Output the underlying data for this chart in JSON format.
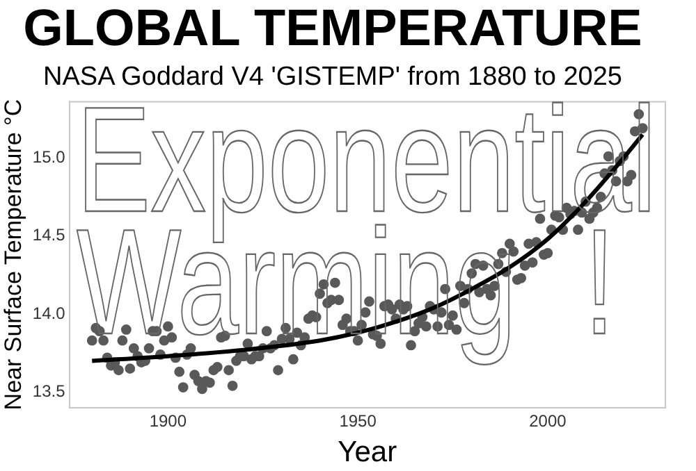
{
  "chart_data": {
    "type": "scatter",
    "title": "GLOBAL TEMPERATURE",
    "subtitle": "NASA Goddard V4 'GISTEMP' from 1880 to 2025",
    "xlabel": "Year",
    "ylabel": "Near Surface Temperature °C",
    "annotations": [
      "Exponential\nWarming !"
    ],
    "xlim": [
      1874,
      2031
    ],
    "xticks": [
      1900,
      1950,
      2000
    ],
    "ylim": [
      13.4,
      15.36
    ],
    "yticks": [
      13.5,
      {
        "value": 14,
        "label": "14.0"
      },
      14.5,
      {
        "value": 15,
        "label": "15.0"
      }
    ],
    "grid": false,
    "legend": false,
    "marker": "circle",
    "series": [
      {
        "color": "#595959",
        "x": [
          1880,
          1881,
          1882,
          1883,
          1884,
          1885,
          1886,
          1887,
          1888,
          1889,
          1890,
          1891,
          1892,
          1893,
          1894,
          1895,
          1896,
          1897,
          1898,
          1899,
          1900,
          1901,
          1902,
          1903,
          1904,
          1905,
          1906,
          1907,
          1908,
          1909,
          1910,
          1911,
          1912,
          1913,
          1914,
          1915,
          1916,
          1917,
          1918,
          1919,
          1920,
          1921,
          1922,
          1923,
          1924,
          1925,
          1926,
          1927,
          1928,
          1929,
          1930,
          1931,
          1932,
          1933,
          1934,
          1935,
          1936,
          1937,
          1938,
          1939,
          1940,
          1941,
          1942,
          1943,
          1944,
          1945,
          1946,
          1947,
          1948,
          1949,
          1950,
          1951,
          1952,
          1953,
          1954,
          1955,
          1956,
          1957,
          1958,
          1959,
          1960,
          1961,
          1962,
          1963,
          1964,
          1965,
          1966,
          1967,
          1968,
          1969,
          1970,
          1971,
          1972,
          1973,
          1974,
          1975,
          1976,
          1977,
          1978,
          1979,
          1980,
          1981,
          1982,
          1983,
          1984,
          1985,
          1986,
          1987,
          1988,
          1989,
          1990,
          1991,
          1992,
          1993,
          1994,
          1995,
          1996,
          1997,
          1998,
          1999,
          2000,
          2001,
          2002,
          2003,
          2004,
          2005,
          2006,
          2007,
          2008,
          2009,
          2010,
          2011,
          2012,
          2013,
          2014,
          2015,
          2016,
          2017,
          2018,
          2019,
          2020,
          2021,
          2022,
          2023,
          2024,
          2025
        ],
        "values": [
          13.83,
          13.91,
          13.89,
          13.83,
          13.72,
          13.67,
          13.69,
          13.64,
          13.83,
          13.9,
          13.65,
          13.78,
          13.73,
          13.69,
          13.7,
          13.78,
          13.89,
          13.89,
          13.74,
          13.83,
          13.92,
          13.85,
          13.72,
          13.63,
          13.53,
          13.74,
          13.78,
          13.61,
          13.57,
          13.52,
          13.57,
          13.56,
          13.64,
          13.66,
          13.85,
          13.86,
          13.64,
          13.54,
          13.7,
          13.73,
          13.73,
          13.81,
          13.71,
          13.73,
          13.73,
          13.78,
          13.89,
          13.78,
          13.8,
          13.64,
          13.84,
          13.91,
          13.84,
          13.71,
          13.88,
          13.8,
          13.85,
          13.97,
          13.99,
          13.98,
          14.13,
          14.19,
          14.07,
          14.09,
          14.2,
          14.09,
          13.93,
          13.97,
          13.89,
          13.89,
          13.83,
          13.93,
          14.01,
          14.08,
          13.87,
          13.86,
          13.81,
          14.05,
          14.06,
          14.03,
          13.97,
          14.06,
          14.03,
          14.05,
          13.8,
          13.89,
          13.94,
          13.98,
          13.92,
          14.05,
          14.03,
          13.92,
          14.01,
          14.16,
          13.93,
          13.99,
          13.9,
          14.18,
          14.07,
          14.16,
          14.26,
          14.32,
          14.14,
          14.31,
          14.16,
          14.12,
          14.18,
          14.32,
          14.39,
          14.27,
          14.45,
          14.4,
          14.22,
          14.23,
          14.31,
          14.45,
          14.33,
          14.46,
          14.61,
          14.38,
          14.39,
          14.54,
          14.63,
          14.62,
          14.54,
          14.68,
          14.64,
          14.66,
          14.54,
          14.65,
          14.72,
          14.61,
          14.65,
          14.68,
          14.75,
          14.9,
          15.01,
          14.92,
          14.85,
          14.98,
          15.01,
          14.85,
          14.89,
          15.17,
          15.28,
          15.19
        ]
      },
      {
        "type": "line",
        "color": "#000000",
        "marker": "none",
        "x": [
          1880,
          1900,
          1920,
          1940,
          1950,
          1960,
          1970,
          1980,
          1990,
          2000,
          2010,
          2020,
          2025
        ],
        "values": [
          13.7,
          13.73,
          13.77,
          13.83,
          13.88,
          13.95,
          14.04,
          14.16,
          14.3,
          14.48,
          14.72,
          15.0,
          15.15
        ]
      }
    ]
  }
}
